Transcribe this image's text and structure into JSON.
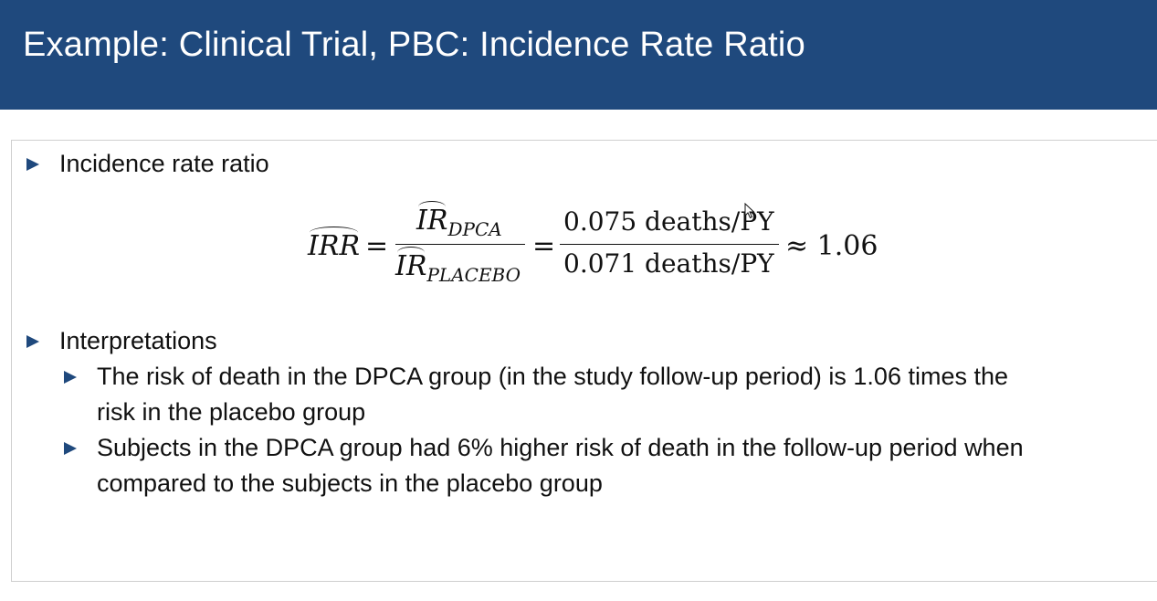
{
  "slide": {
    "title": "Example: Clinical Trial, PBC: Incidence Rate Ratio"
  },
  "content": {
    "bullet1": "Incidence rate ratio",
    "formula": {
      "lhs": "IRR",
      "eq1": "=",
      "num_main": "IR",
      "num_sub": "DPCA",
      "den_main": "IR",
      "den_sub": "PLACEBO",
      "eq2": "=",
      "num_value": "0.075 deaths/PY",
      "den_value": "0.071 deaths/PY",
      "approx": "≈ 1.06"
    },
    "bullet2": "Interpretations",
    "sub_bullets": [
      {
        "line1": "The risk of death in the DPCA group (in the study follow-up period) is 1.06 times the",
        "line2": "risk in the placebo group"
      },
      {
        "line1": "Subjects in the DPCA group had 6% higher risk of death in the follow-up period when",
        "line2": "compared to the subjects in the placebo group"
      }
    ]
  },
  "colors": {
    "title_bar": "#1f497d",
    "title_text": "#ffffff",
    "bullet": "#1f497d"
  },
  "icons": {
    "cursor": "mouse-pointer-icon"
  }
}
